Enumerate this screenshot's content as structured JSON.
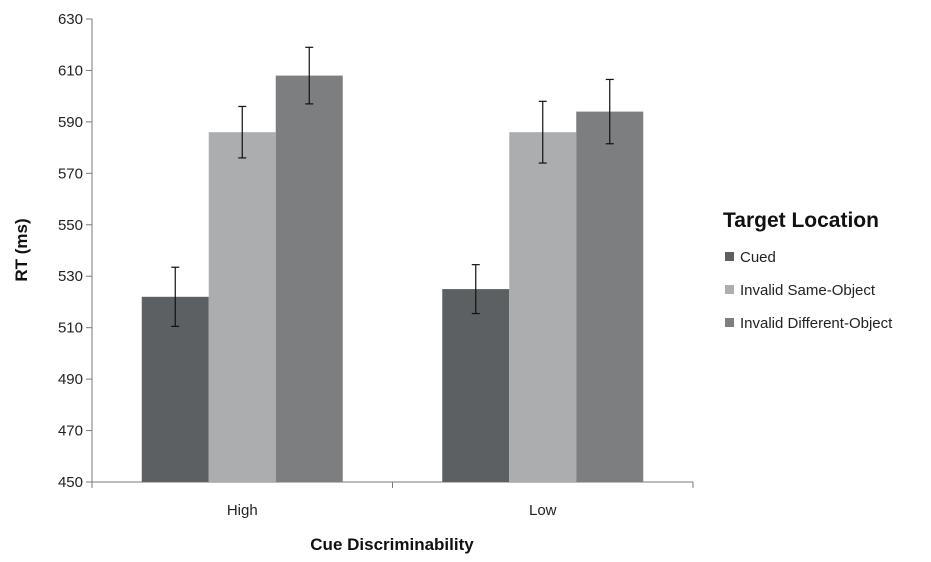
{
  "chart_data": {
    "type": "bar",
    "categories": [
      "High",
      "Low"
    ],
    "series": [
      {
        "name": "Cued",
        "values": [
          522,
          525
        ],
        "errors": [
          11.5,
          9.5
        ],
        "color": "#5c6063"
      },
      {
        "name": "Invalid Same-Object",
        "values": [
          586,
          586
        ],
        "errors": [
          10,
          12
        ],
        "color": "#abadaf"
      },
      {
        "name": "Invalid Different-Object",
        "values": [
          608,
          594
        ],
        "errors": [
          11,
          12.5
        ],
        "color": "#7c7e80"
      }
    ],
    "xlabel": "Cue Discriminability",
    "ylabel": "RT (ms)",
    "ylim": [
      450,
      630
    ],
    "yticks": [
      450,
      470,
      490,
      510,
      530,
      550,
      570,
      590,
      610,
      630
    ],
    "legend_title": "Target Location",
    "legend_position": "right",
    "grid": false
  }
}
